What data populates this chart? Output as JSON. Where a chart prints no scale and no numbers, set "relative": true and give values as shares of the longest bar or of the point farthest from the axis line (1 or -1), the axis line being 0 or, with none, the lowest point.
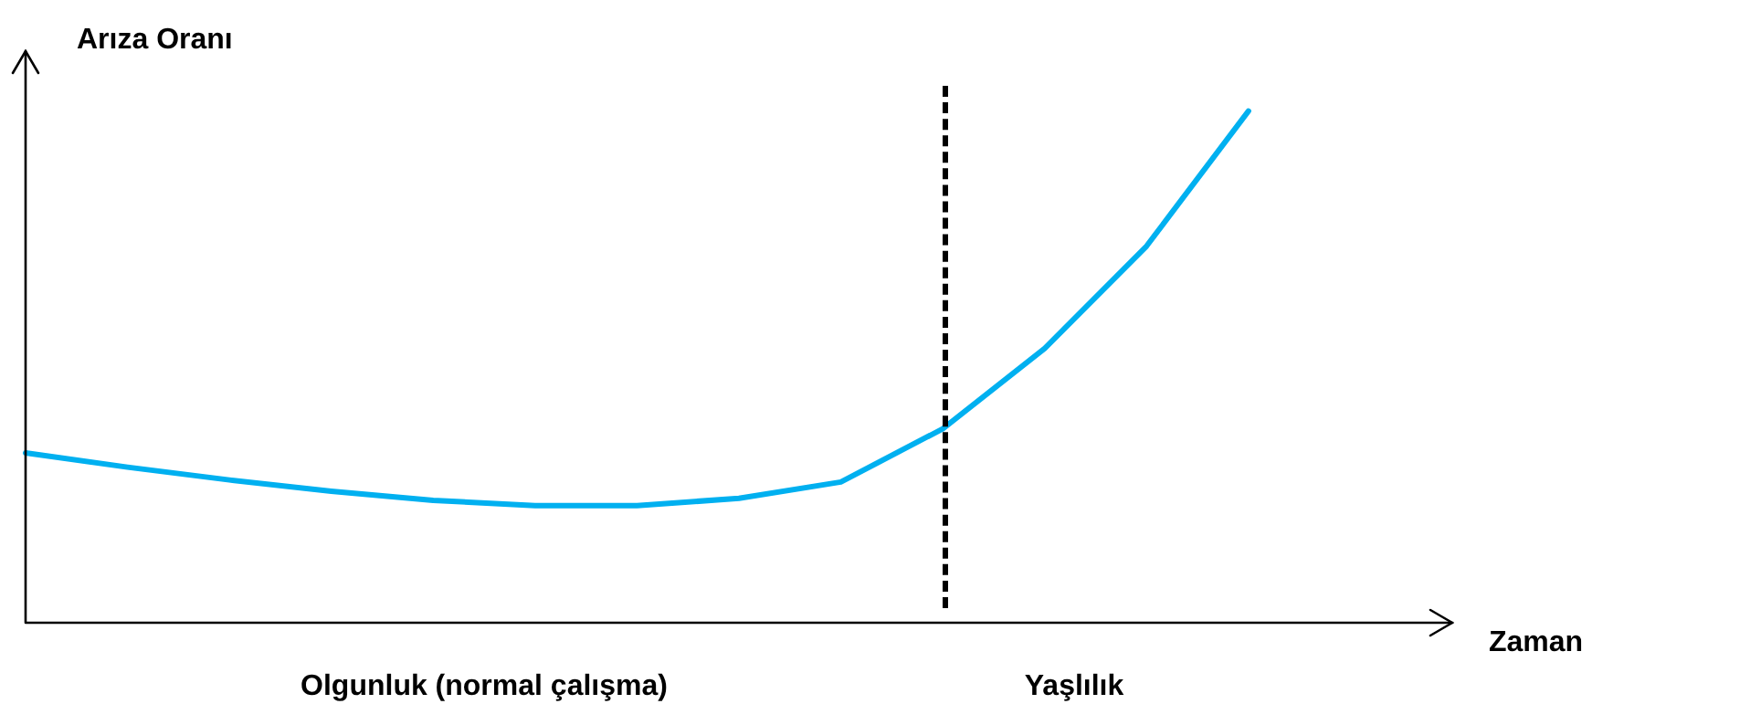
{
  "chart_data": {
    "type": "line",
    "relative": true,
    "xlabel": "Zaman",
    "ylabel": "Arıza Oranı",
    "categories": [
      null,
      null,
      null,
      null,
      null,
      null,
      null,
      null,
      null,
      null,
      null,
      null,
      null,
      null,
      null
    ],
    "marker": "none",
    "line_style": "solid",
    "series": [
      {
        "color": "#00b0f0",
        "values": [
          0.332,
          0.304,
          0.279,
          0.257,
          0.239,
          0.229,
          0.229,
          0.243,
          0.275,
          0.379,
          0.536,
          0.736,
          1,
          null,
          null
        ]
      }
    ],
    "annotations": [
      "Olgunluk (normal çalışma)",
      "Yaşlılık"
    ]
  }
}
